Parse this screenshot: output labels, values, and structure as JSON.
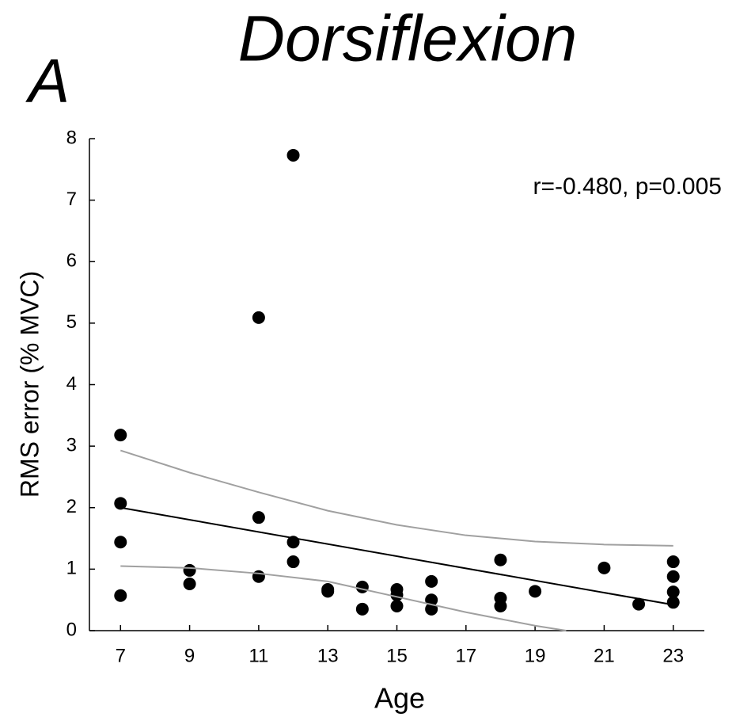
{
  "chart_data": {
    "type": "scatter",
    "title": "Dorsiflexion",
    "panel_label": "A",
    "annotation": "r=-0.480, p=0.005",
    "x_label": "Age",
    "y_label": "RMS error (% MVC)",
    "xlim": [
      6.1,
      23.9
    ],
    "ylim": [
      0,
      8
    ],
    "xticks": [
      7,
      9,
      11,
      13,
      15,
      17,
      19,
      21,
      23
    ],
    "yticks": [
      0,
      1,
      2,
      3,
      4,
      5,
      6,
      7,
      8
    ],
    "series": [
      {
        "type": "scatter",
        "color": "#000000",
        "x": [
          7,
          7,
          7,
          7,
          9,
          9,
          11,
          11,
          11,
          12,
          12,
          12,
          13,
          13,
          14,
          14,
          15,
          15,
          15,
          16,
          16,
          16,
          18,
          18,
          18,
          19,
          21,
          22,
          23,
          23,
          23,
          23
        ],
        "values": [
          3.18,
          2.07,
          1.44,
          0.57,
          0.98,
          0.76,
          5.09,
          1.84,
          0.88,
          7.73,
          1.44,
          1.12,
          0.67,
          0.64,
          0.71,
          0.35,
          0.67,
          0.58,
          0.4,
          0.8,
          0.5,
          0.35,
          1.15,
          0.53,
          0.4,
          0.64,
          1.02,
          0.43,
          1.12,
          0.88,
          0.63,
          0.46
        ]
      },
      {
        "type": "line",
        "color": "#000000",
        "x": [
          7,
          23
        ],
        "values": [
          2.0,
          0.42
        ]
      },
      {
        "type": "line",
        "color": "#a0a0a0",
        "x": [
          7,
          9,
          11,
          13,
          15,
          17,
          19,
          21,
          23
        ],
        "values": [
          2.93,
          2.57,
          2.25,
          1.95,
          1.72,
          1.55,
          1.45,
          1.4,
          1.38
        ]
      },
      {
        "type": "line",
        "color": "#a0a0a0",
        "x": [
          7,
          9,
          11,
          13,
          15,
          17,
          19,
          19.9
        ],
        "values": [
          1.05,
          1.02,
          0.93,
          0.8,
          0.55,
          0.3,
          0.08,
          0
        ]
      }
    ]
  }
}
